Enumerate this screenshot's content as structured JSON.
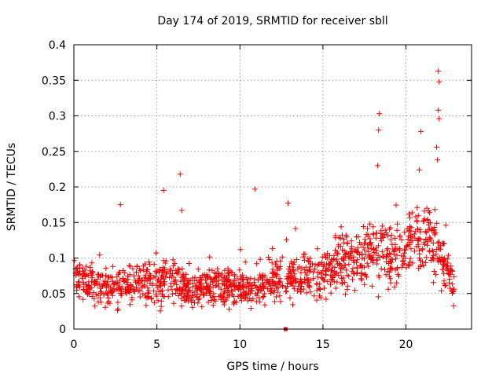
{
  "chart_data": {
    "type": "scatter",
    "title": "Day 174 of 2019, SRMTID for receiver sbll",
    "xlabel": "GPS time / hours",
    "ylabel": "SRMTID / TECUs",
    "xlim": [
      0,
      23.95
    ],
    "ylim": [
      0,
      0.4
    ],
    "xticks": [
      0,
      5,
      10,
      15,
      20
    ],
    "xtick_labels": [
      "0",
      "5",
      "10",
      "15",
      "20"
    ],
    "yticks": [
      0,
      0.05,
      0.1,
      0.15,
      0.2,
      0.25,
      0.3,
      0.35,
      0.4
    ],
    "ytick_labels": [
      "0",
      "0.05",
      "0.1",
      "0.15",
      "0.2",
      "0.25",
      "0.3",
      "0.35",
      "0.4"
    ],
    "grid": true,
    "marker": "plus",
    "color": "#ee0000",
    "series": [
      {
        "name": "SRMTID",
        "notable_points": [
          {
            "x": 2.8,
            "y": 0.175
          },
          {
            "x": 5.4,
            "y": 0.195
          },
          {
            "x": 6.4,
            "y": 0.218
          },
          {
            "x": 6.5,
            "y": 0.167
          },
          {
            "x": 10.9,
            "y": 0.197
          },
          {
            "x": 12.9,
            "y": 0.177
          },
          {
            "x": 18.4,
            "y": 0.303
          },
          {
            "x": 18.35,
            "y": 0.28
          },
          {
            "x": 18.3,
            "y": 0.23
          },
          {
            "x": 20.9,
            "y": 0.278
          },
          {
            "x": 20.8,
            "y": 0.224
          },
          {
            "x": 21.95,
            "y": 0.363
          },
          {
            "x": 22.0,
            "y": 0.348
          },
          {
            "x": 21.95,
            "y": 0.308
          },
          {
            "x": 22.0,
            "y": 0.296
          },
          {
            "x": 21.85,
            "y": 0.256
          },
          {
            "x": 21.9,
            "y": 0.238
          }
        ],
        "profile": [
          {
            "hour": 0,
            "typical": 0.075,
            "spread": 0.025
          },
          {
            "hour": 1,
            "typical": 0.065,
            "spread": 0.025
          },
          {
            "hour": 2,
            "typical": 0.055,
            "spread": 0.022
          },
          {
            "hour": 3,
            "typical": 0.06,
            "spread": 0.025
          },
          {
            "hour": 4,
            "typical": 0.07,
            "spread": 0.025
          },
          {
            "hour": 5,
            "typical": 0.065,
            "spread": 0.03
          },
          {
            "hour": 6,
            "typical": 0.07,
            "spread": 0.028
          },
          {
            "hour": 7,
            "typical": 0.055,
            "spread": 0.022
          },
          {
            "hour": 8,
            "typical": 0.06,
            "spread": 0.022
          },
          {
            "hour": 9,
            "typical": 0.06,
            "spread": 0.022
          },
          {
            "hour": 10,
            "typical": 0.058,
            "spread": 0.022
          },
          {
            "hour": 11,
            "typical": 0.055,
            "spread": 0.022
          },
          {
            "hour": 12,
            "typical": 0.07,
            "spread": 0.03
          },
          {
            "hour": 13,
            "typical": 0.07,
            "spread": 0.025
          },
          {
            "hour": 14,
            "typical": 0.075,
            "spread": 0.025
          },
          {
            "hour": 15,
            "typical": 0.075,
            "spread": 0.028
          },
          {
            "hour": 16,
            "typical": 0.095,
            "spread": 0.035
          },
          {
            "hour": 17,
            "typical": 0.1,
            "spread": 0.03
          },
          {
            "hour": 18,
            "typical": 0.11,
            "spread": 0.035
          },
          {
            "hour": 19,
            "typical": 0.1,
            "spread": 0.035
          },
          {
            "hour": 20,
            "typical": 0.12,
            "spread": 0.035
          },
          {
            "hour": 21,
            "typical": 0.13,
            "spread": 0.04
          },
          {
            "hour": 22,
            "typical": 0.11,
            "spread": 0.045
          },
          {
            "hour": 22.9,
            "typical": 0.055,
            "spread": 0.02
          }
        ],
        "sample_count": 1400
      },
      {
        "name": "gap marker",
        "marker": "square",
        "points": [
          {
            "x": 12.75,
            "y": 0.0
          }
        ]
      }
    ]
  }
}
